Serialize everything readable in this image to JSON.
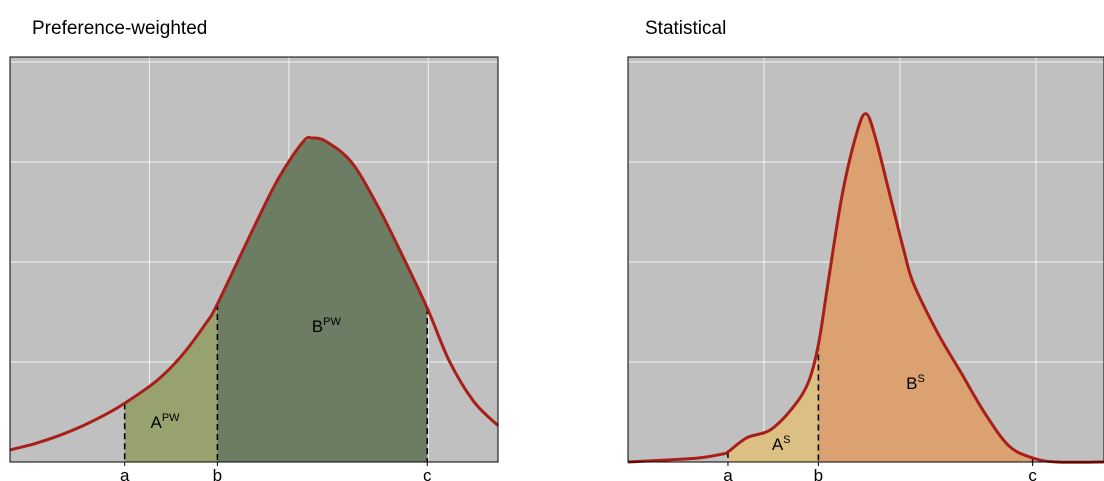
{
  "colors": {
    "plot_bg": "#c0c0c0",
    "grid": "#f2f2f2",
    "curve": "#a81f1a",
    "pw_region_a": "#98a26e",
    "pw_region_b": "#6c7d64",
    "s_region_a": "#dcc083",
    "s_region_b": "#dba171",
    "marker_line": "#000000"
  },
  "chart_data": [
    {
      "type": "area",
      "title": "Preference-weighted",
      "xlabel": "",
      "ylabel": "",
      "grid": true,
      "xlim": [
        0,
        1
      ],
      "ylim": [
        0,
        1
      ],
      "markers": [
        {
          "label": "a",
          "x": 0.235
        },
        {
          "label": "b",
          "x": 0.425
        },
        {
          "label": "c",
          "x": 0.855
        }
      ],
      "regions": [
        {
          "from": "a",
          "to": "b",
          "label_main": "A",
          "label_sup": "PW"
        },
        {
          "from": "b",
          "to": "c",
          "label_main": "B",
          "label_sup": "PW"
        }
      ],
      "series": [
        {
          "x": [
            0.0,
            0.05,
            0.1,
            0.15,
            0.2,
            0.235,
            0.3,
            0.35,
            0.4,
            0.425,
            0.5,
            0.55,
            0.6,
            0.62,
            0.65,
            0.7,
            0.75,
            0.8,
            0.855,
            0.9,
            0.95,
            1.0
          ],
          "y": [
            0.03,
            0.045,
            0.065,
            0.09,
            0.12,
            0.145,
            0.2,
            0.26,
            0.34,
            0.39,
            0.58,
            0.7,
            0.79,
            0.8,
            0.79,
            0.74,
            0.64,
            0.52,
            0.38,
            0.25,
            0.15,
            0.09
          ]
        }
      ]
    },
    {
      "type": "area",
      "title": "Statistical",
      "xlabel": "",
      "ylabel": "",
      "grid": true,
      "xlim": [
        0,
        1
      ],
      "ylim": [
        0,
        1
      ],
      "markers": [
        {
          "label": "a",
          "x": 0.21
        },
        {
          "label": "b",
          "x": 0.4
        },
        {
          "label": "c",
          "x": 0.85
        }
      ],
      "regions": [
        {
          "from": "a",
          "to": "b",
          "label_main": "A",
          "label_sup": "S"
        },
        {
          "from": "b",
          "to": "c",
          "label_main": "B",
          "label_sup": "S"
        }
      ],
      "series": [
        {
          "x": [
            0.0,
            0.08,
            0.15,
            0.2,
            0.21,
            0.25,
            0.3,
            0.35,
            0.38,
            0.4,
            0.42,
            0.45,
            0.48,
            0.5,
            0.52,
            0.55,
            0.58,
            0.6,
            0.65,
            0.7,
            0.75,
            0.8,
            0.85,
            0.9,
            1.0
          ],
          "y": [
            0.0,
            0.005,
            0.01,
            0.02,
            0.025,
            0.06,
            0.08,
            0.14,
            0.2,
            0.29,
            0.44,
            0.66,
            0.81,
            0.86,
            0.8,
            0.66,
            0.52,
            0.44,
            0.32,
            0.22,
            0.12,
            0.04,
            0.01,
            0.0,
            0.0
          ]
        }
      ]
    }
  ]
}
